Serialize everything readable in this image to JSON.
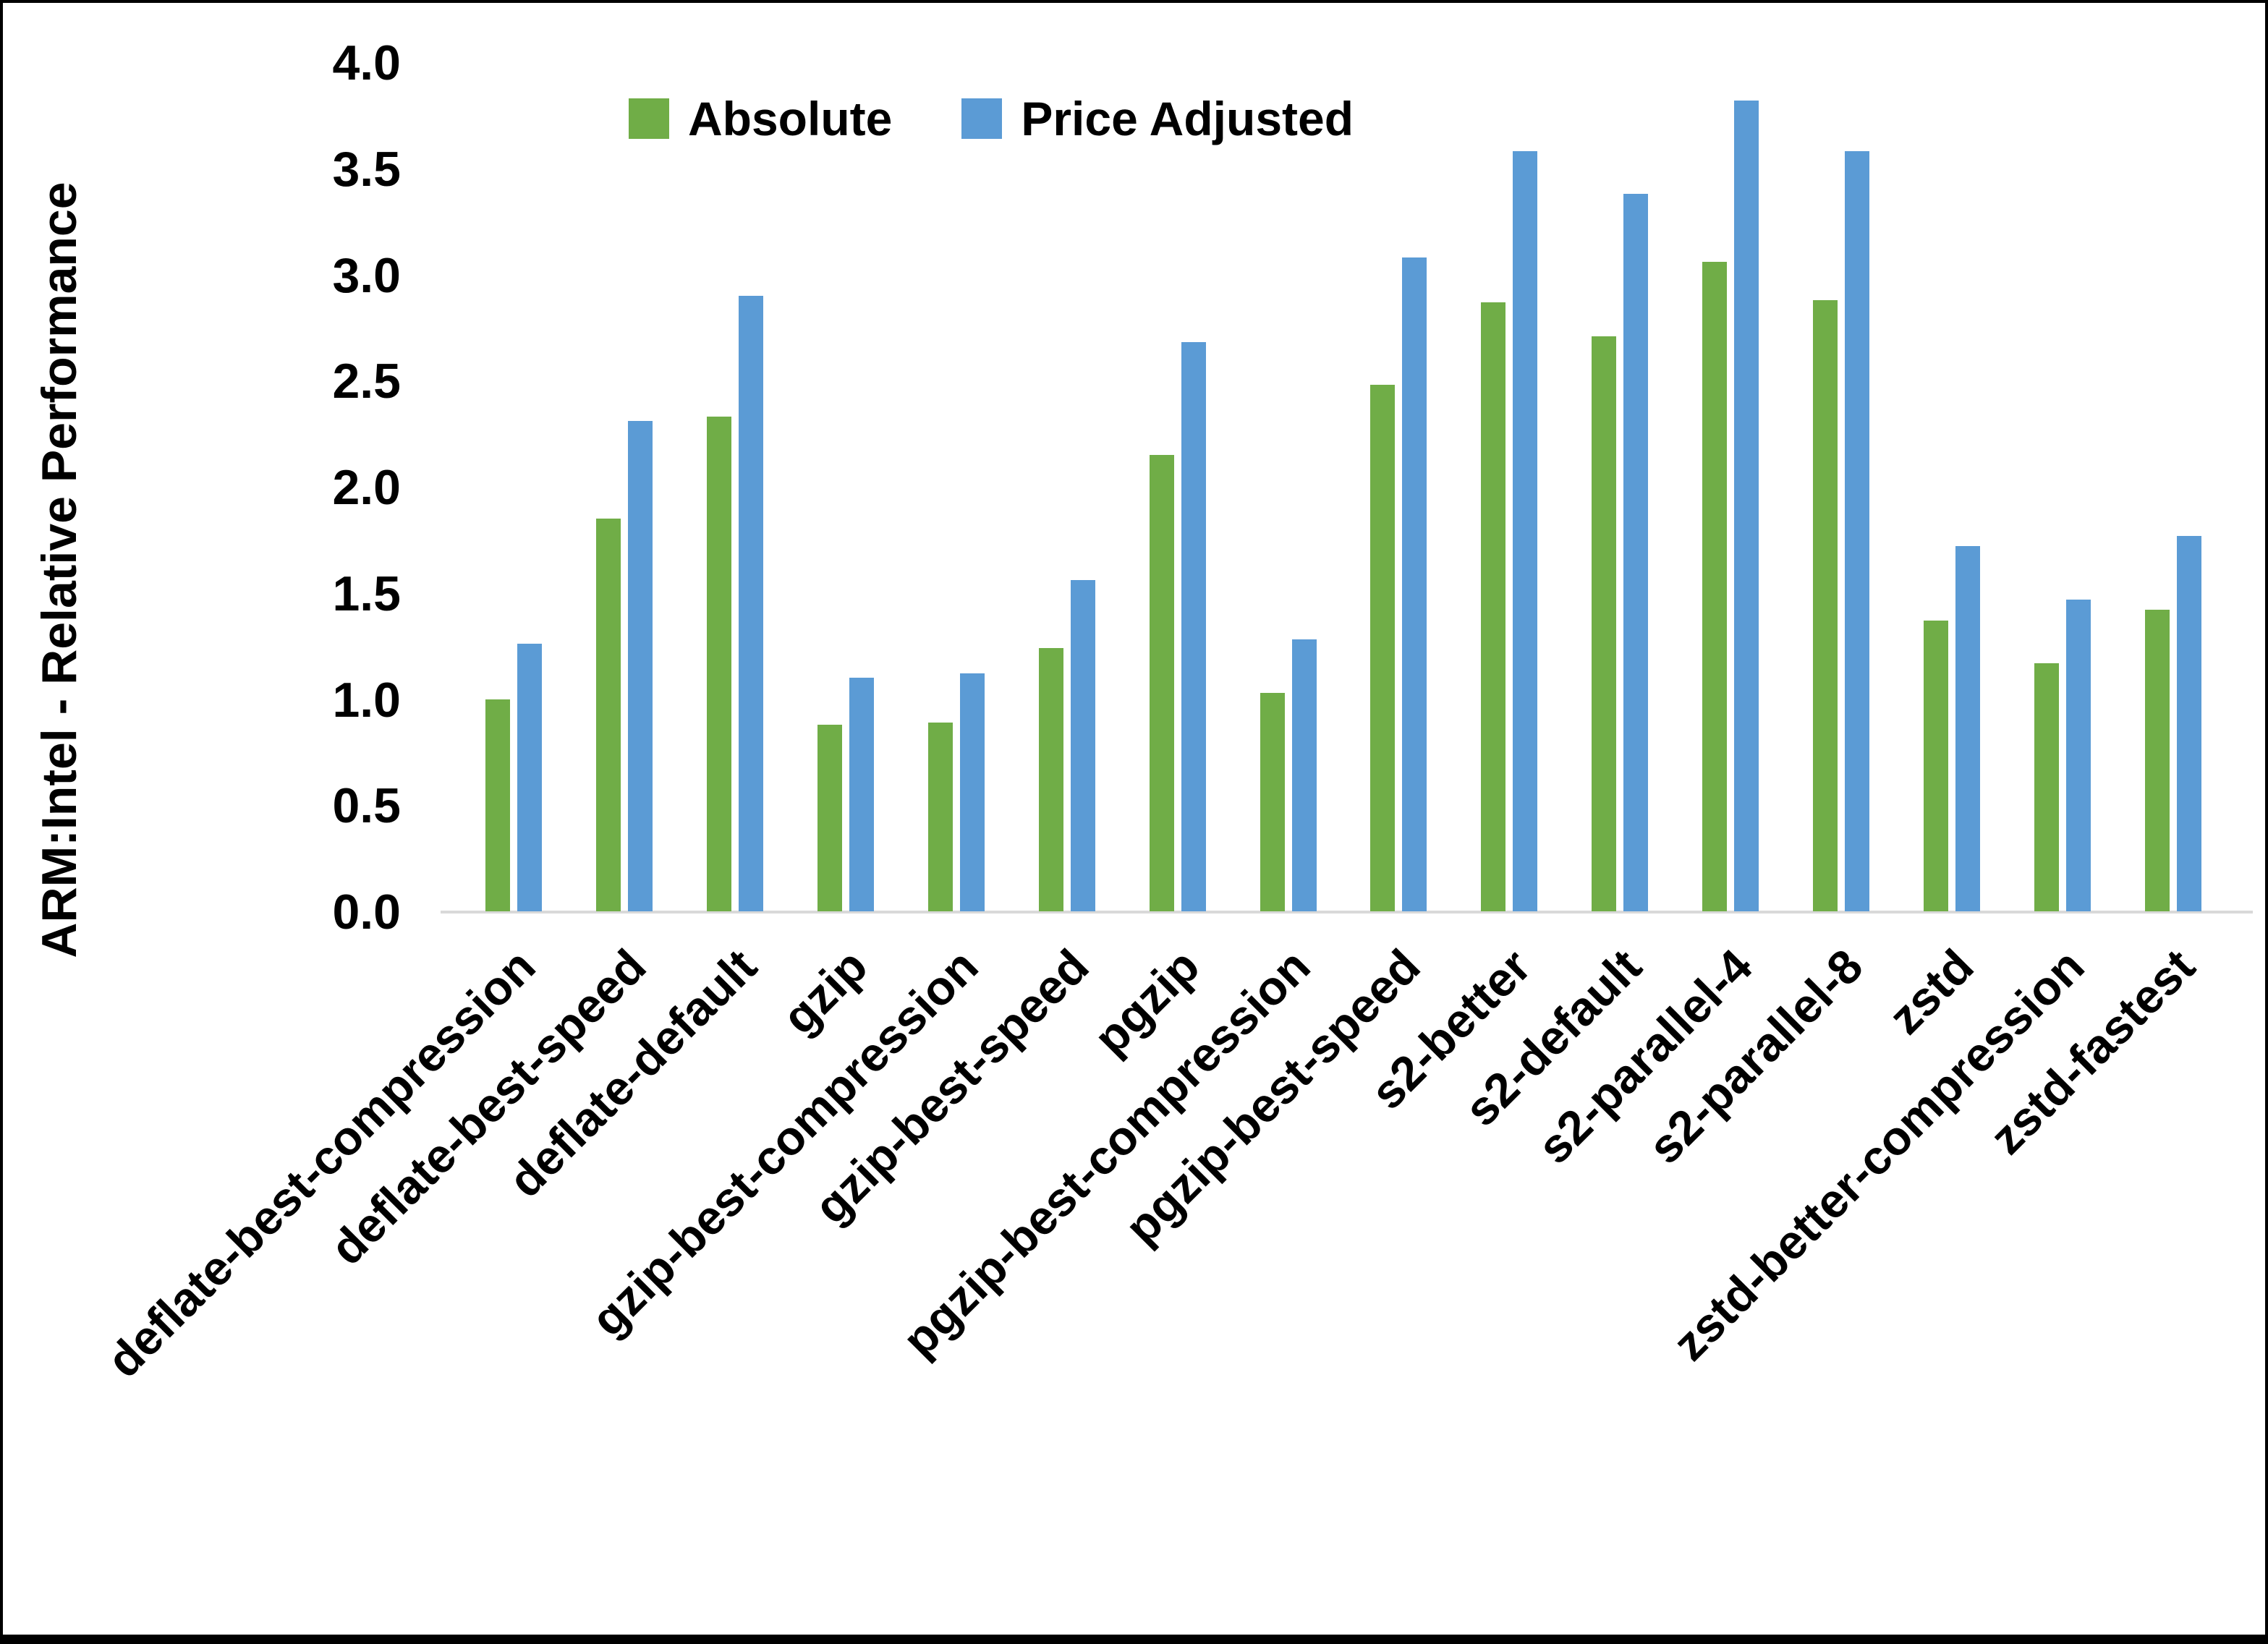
{
  "chart_data": {
    "type": "bar",
    "title": "",
    "xlabel": "",
    "ylabel": "ARM:Intel - Relative Performance",
    "ylim": [
      0.0,
      4.0
    ],
    "yticks": [
      "0.0",
      "0.5",
      "1.0",
      "1.5",
      "2.0",
      "2.5",
      "3.0",
      "3.5",
      "4.0"
    ],
    "grid": false,
    "legend_position": "top-center",
    "categories": [
      "deflate-best-compression",
      "deflate-best-speed",
      "deflate-default",
      "gzip",
      "gzip-best-compression",
      "gzip-best-speed",
      "pgzip",
      "pgzip-best-compression",
      "pgzip-best-speed",
      "s2-better",
      "s2-default",
      "s2-parallel-4",
      "s2-parallel-8",
      "zstd",
      "zstd-better-compression",
      "zstd-fastest"
    ],
    "series": [
      {
        "name": "Absolute",
        "color": "#70AD47",
        "values": [
          1.0,
          1.85,
          2.33,
          0.88,
          0.89,
          1.24,
          2.15,
          1.03,
          2.48,
          2.87,
          2.71,
          3.06,
          2.88,
          1.37,
          1.17,
          1.42
        ]
      },
      {
        "name": "Price Adjusted",
        "color": "#5B9BD5",
        "values": [
          1.26,
          2.31,
          2.9,
          1.1,
          1.12,
          1.56,
          2.68,
          1.28,
          3.08,
          3.58,
          3.38,
          3.82,
          3.58,
          1.72,
          1.47,
          1.77
        ]
      }
    ]
  },
  "colors": {
    "absolute": "#70AD47",
    "price_adjusted": "#5B9BD5",
    "axis_line": "#D9D9D9",
    "text": "#000000",
    "background": "#FFFFFF"
  }
}
